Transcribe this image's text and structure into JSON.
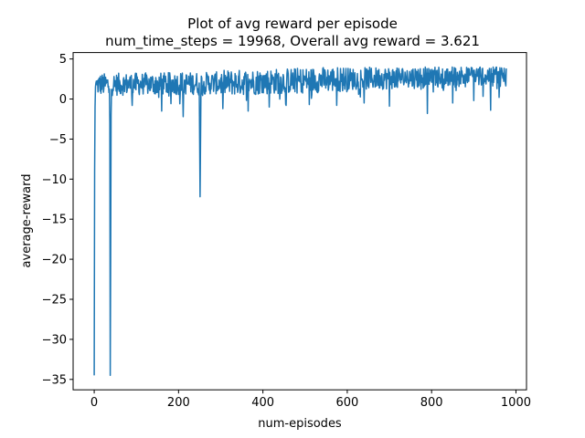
{
  "chart_data": {
    "type": "line",
    "title": "Plot of avg reward per episode",
    "subtitle": "num_time_steps = 19968, Overall avg reward = 3.621",
    "xlabel": "num-episodes",
    "ylabel": "average-reward",
    "xlim": [
      -50,
      1025
    ],
    "ylim": [
      -36.3,
      5.8
    ],
    "xticks": [
      0,
      200,
      400,
      600,
      800,
      1000
    ],
    "xtick_labels": [
      "0",
      "200",
      "400",
      "600",
      "800",
      "1000"
    ],
    "yticks": [
      5,
      0,
      -5,
      -10,
      -15,
      -20,
      -25,
      -30,
      -35
    ],
    "ytick_labels": [
      "5",
      "0",
      "−5",
      "−10",
      "−15",
      "−20",
      "−25",
      "−30",
      "−35"
    ],
    "grid": false,
    "color": "#1f77b4",
    "x_range": [
      0,
      978
    ],
    "series": [
      {
        "description": "noisy per-episode average reward",
        "points": [
          [
            0,
            -34.5
          ],
          [
            1,
            -9.0
          ],
          [
            2,
            -1.0
          ],
          [
            3,
            1.5
          ],
          [
            4,
            2.0
          ],
          [
            6,
            1.8
          ],
          [
            35,
            0.8
          ],
          [
            37,
            -3.0
          ],
          [
            38,
            -34.5
          ],
          [
            39,
            -20.0
          ],
          [
            40,
            -2.0
          ],
          [
            41,
            1.2
          ],
          [
            210,
            0.5
          ],
          [
            211,
            -2.2
          ],
          [
            212,
            0.8
          ],
          [
            248,
            0.5
          ],
          [
            250,
            -5.0
          ],
          [
            251,
            -12.2
          ],
          [
            252,
            -6.0
          ],
          [
            253,
            0.5
          ]
        ],
        "baseline": {
          "segments": [
            {
              "from": 5,
              "to": 300,
              "mean_start": 1.8,
              "mean_end": 2.0,
              "amplitude": 1.4
            },
            {
              "from": 300,
              "to": 600,
              "mean_start": 2.0,
              "mean_end": 2.5,
              "amplitude": 1.6
            },
            {
              "from": 600,
              "to": 978,
              "mean_start": 2.5,
              "mean_end": 3.0,
              "amplitude": 1.4
            }
          ],
          "max": 4.0
        },
        "dips": [
          [
            90,
            -0.8
          ],
          [
            160,
            -1.5
          ],
          [
            305,
            -1.2
          ],
          [
            365,
            -1.5
          ],
          [
            415,
            -1.0
          ],
          [
            455,
            -0.8
          ],
          [
            510,
            -0.7
          ],
          [
            575,
            -0.8
          ],
          [
            640,
            -0.5
          ],
          [
            700,
            -0.9
          ],
          [
            790,
            -1.8
          ],
          [
            850,
            -0.5
          ],
          [
            900,
            -0.2
          ],
          [
            940,
            -1.4
          ],
          [
            960,
            0.2
          ]
        ]
      }
    ]
  }
}
